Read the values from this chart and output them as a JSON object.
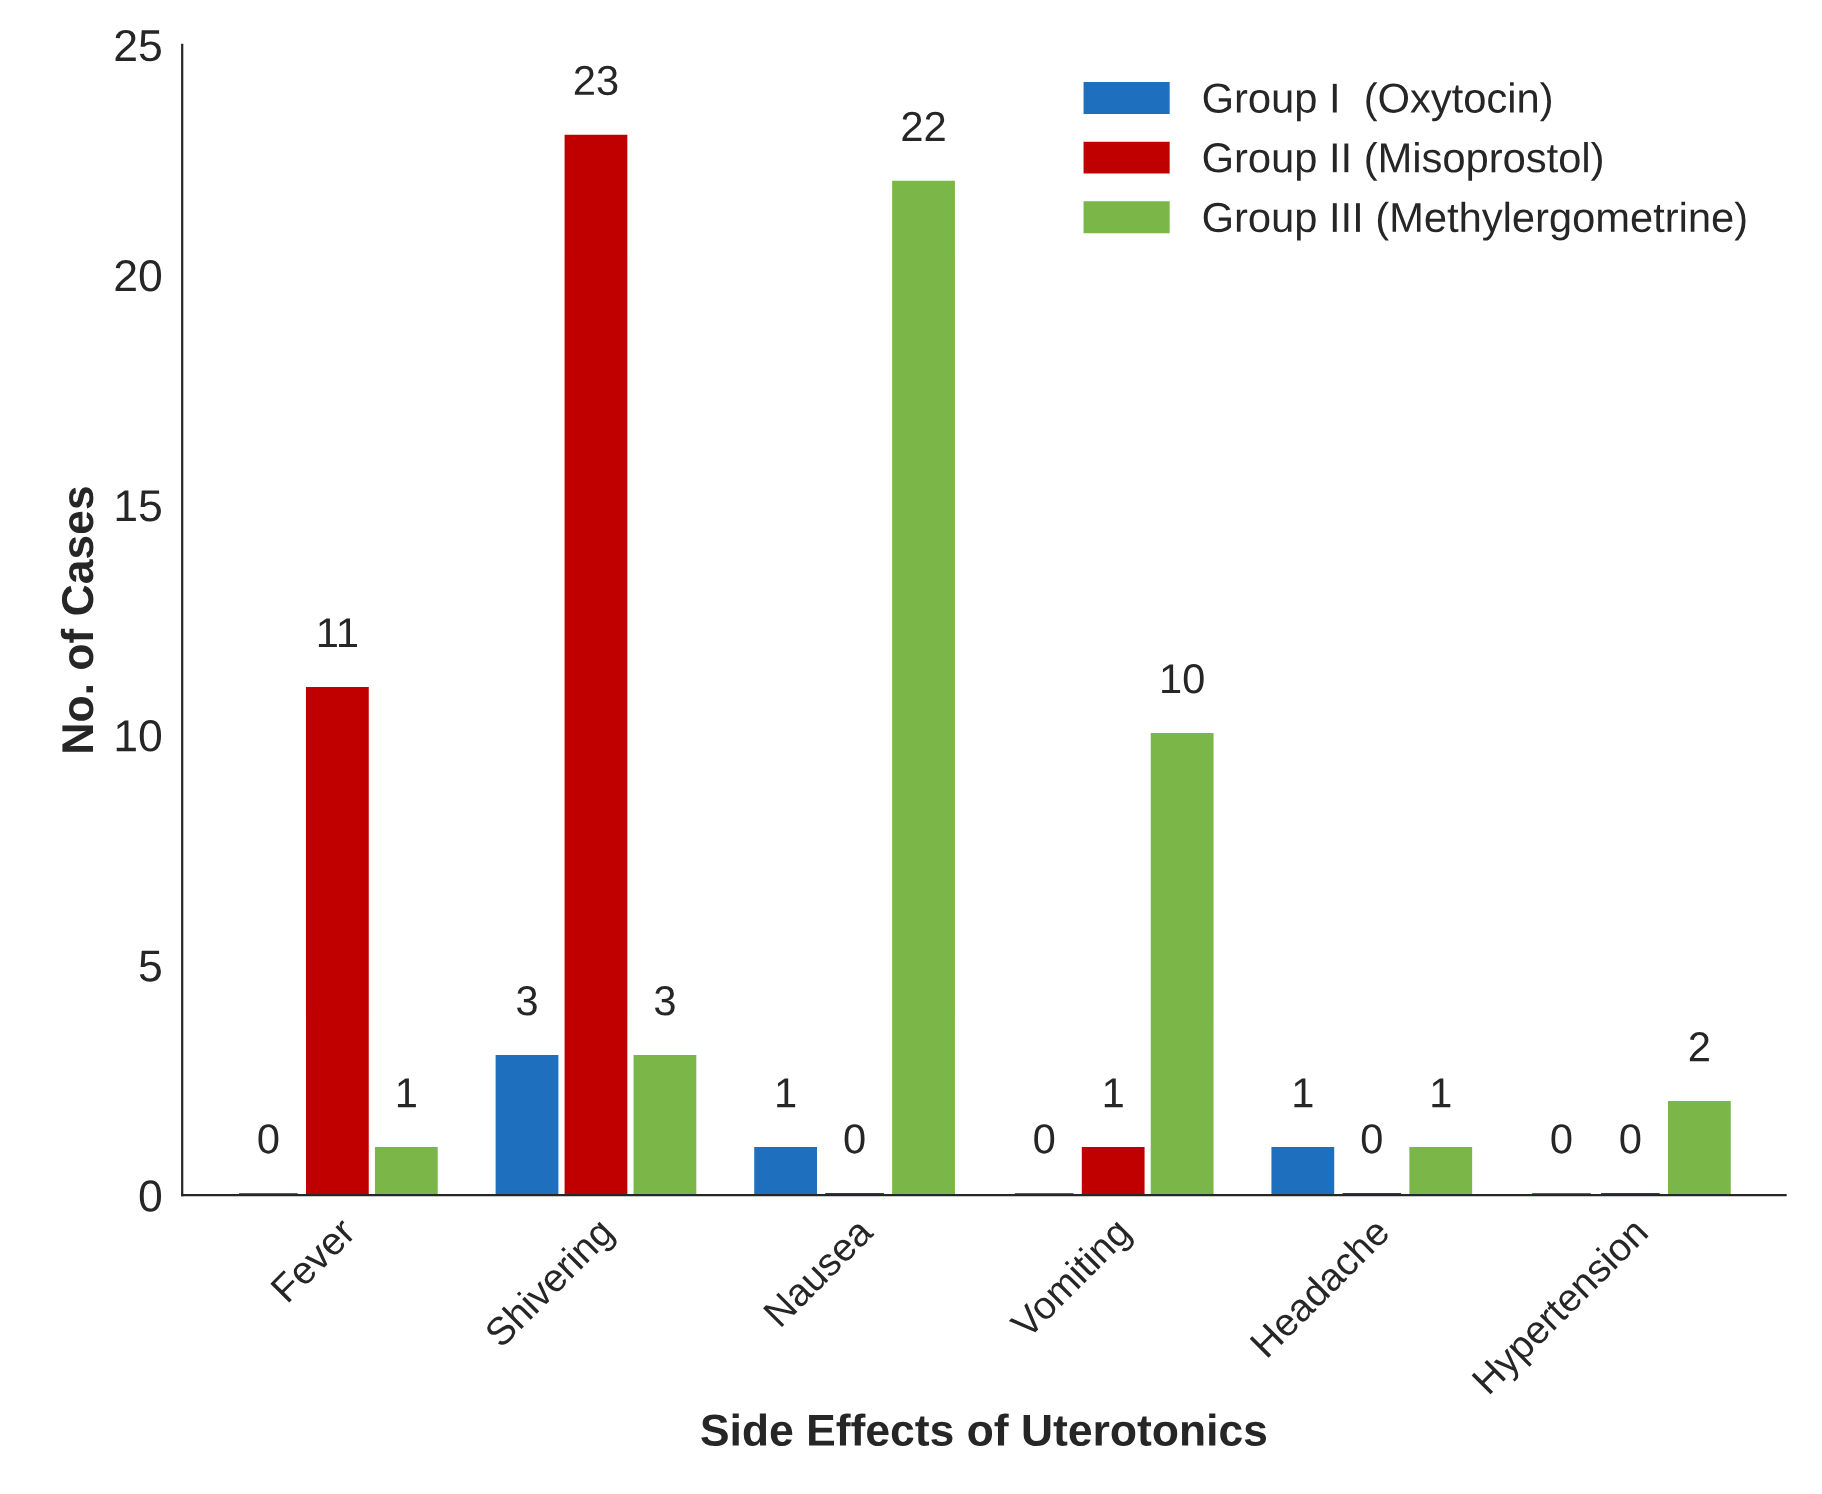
{
  "chart_data": {
    "type": "bar",
    "xlabel": "Side Effects of Uterotonics",
    "ylabel": "No. of Cases",
    "categories": [
      "Fever",
      "Shivering",
      "Nausea",
      "Vomiting",
      "Headache",
      "Hypertension"
    ],
    "series": [
      {
        "name": "Group I  (Oxytocin)",
        "color": "#1f6fbf",
        "values": [
          0,
          3,
          1,
          0,
          1,
          0
        ]
      },
      {
        "name": "Group II (Misoprostol)",
        "color": "#c00000",
        "values": [
          11,
          23,
          0,
          1,
          0,
          0
        ]
      },
      {
        "name": "Group III (Methylergometrine)",
        "color": "#7ab648",
        "values": [
          1,
          3,
          22,
          10,
          1,
          2
        ]
      }
    ],
    "ylim": [
      0,
      25
    ],
    "yticks": [
      0,
      5,
      10,
      15,
      20,
      25
    ],
    "data_labels": true,
    "grid": false,
    "legend": "top right"
  }
}
